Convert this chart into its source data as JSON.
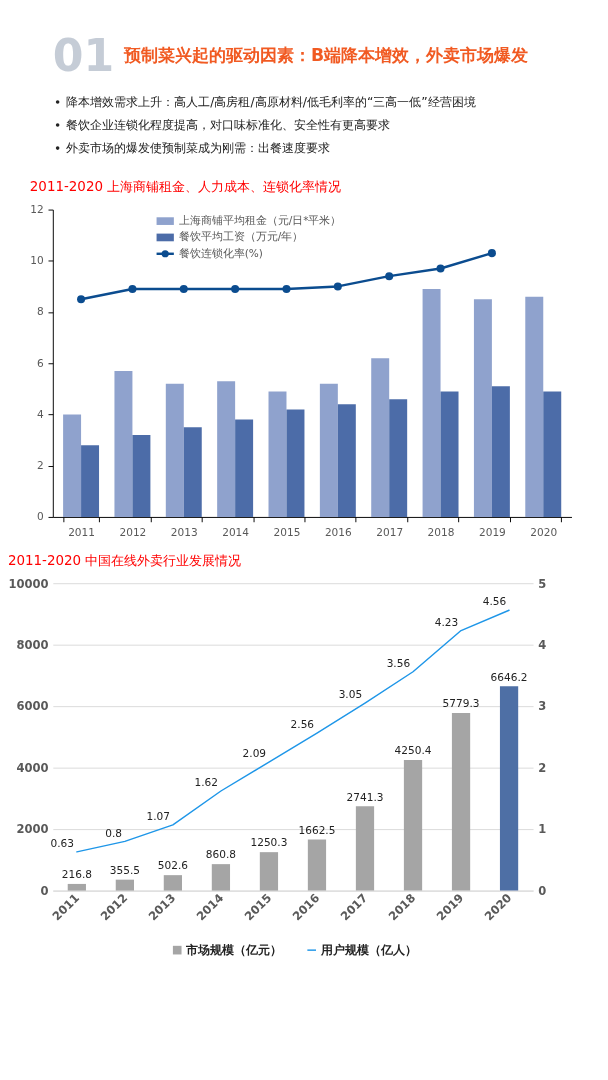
{
  "chart_data": [
    {
      "type": "other",
      "title": "预制菜兴起的驱动因素：B端降本增效，外卖市场爆发",
      "annotations": [
        "01",
        "降本增效需求上升：高人工/高房租/高原材料/低毛利率的“三高一低”经营困境",
        "餐饮企业连锁化程度提高，对口味标准化、安全性有更高要求",
        "外卖市场的爆发使预制菜成为刚需：出餐速度要求"
      ]
    },
    {
      "type": "bar",
      "title": "2011-2020 上海商铺租金、人力成本、连锁化率情况",
      "categories": [
        "2011",
        "2012",
        "2013",
        "2014",
        "2015",
        "2016",
        "2017",
        "2018",
        "2019",
        "2020"
      ],
      "series": [
        {
          "name": "上海商铺平均租金（元/日*平米）",
          "color": "#8fa2cd",
          "values": [
            4.0,
            5.7,
            5.2,
            5.3,
            4.9,
            5.2,
            6.2,
            8.9,
            8.5,
            8.6
          ]
        },
        {
          "name": "餐饮平均工资（万元/年）",
          "color": "#4c6ca8",
          "values": [
            2.8,
            3.2,
            3.5,
            3.8,
            4.2,
            4.4,
            4.6,
            4.9,
            5.1,
            4.9
          ]
        },
        {
          "name": "餐饮连锁化率(%)",
          "type": "line",
          "color": "#0b4c8f",
          "marker": "circle",
          "values": [
            8.5,
            8.9,
            8.9,
            8.9,
            8.9,
            9.0,
            9.4,
            9.7,
            10.3,
            null
          ]
        }
      ],
      "ylim": [
        0,
        12
      ],
      "yticks": [
        0,
        2,
        4,
        6,
        8,
        10,
        12
      ],
      "legend": "top left"
    },
    {
      "type": "bar",
      "title": "2011-2020 中国在线外卖行业发展情况",
      "categories": [
        "2011",
        "2012",
        "2013",
        "2014",
        "2015",
        "2016",
        "2017",
        "2018",
        "2019",
        "2020"
      ],
      "series": [
        {
          "name": "市场规模（亿元）",
          "color": "#a5a5a5",
          "colors": [
            "#a5a5a5",
            "#a5a5a5",
            "#a5a5a5",
            "#a5a5a5",
            "#a5a5a5",
            "#a5a5a5",
            "#a5a5a5",
            "#a5a5a5",
            "#a5a5a5",
            "#4e6fa5"
          ],
          "values": [
            216.8,
            355.5,
            502.6,
            860.8,
            1250.3,
            1662.5,
            2741.3,
            4250.4,
            5779.3,
            6646.2
          ]
        },
        {
          "name": "用户规模（亿人）",
          "type": "line",
          "axis": "y2",
          "color": "#1e96e8",
          "values": [
            0.63,
            0.8,
            1.07,
            1.62,
            2.09,
            2.56,
            3.05,
            3.56,
            4.23,
            4.56
          ]
        }
      ],
      "ylim": [
        0,
        10000
      ],
      "yticks": [
        0,
        2000,
        4000,
        6000,
        8000,
        10000
      ],
      "y2lim": [
        0,
        5
      ],
      "y2ticks": [
        0,
        1,
        2,
        3,
        4,
        5
      ],
      "grid": "y",
      "legend": "bottom",
      "data_labels": true
    }
  ]
}
